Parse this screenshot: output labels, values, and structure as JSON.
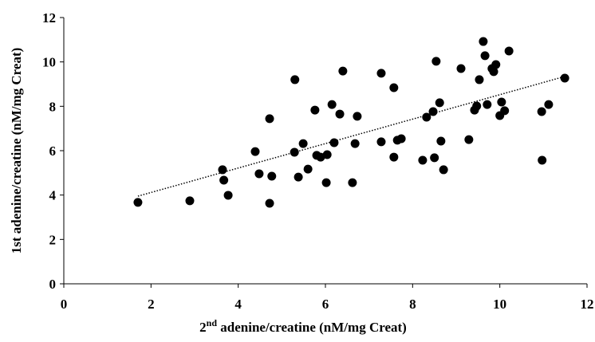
{
  "chart_data": {
    "type": "scatter",
    "xlabel_parts": [
      "2",
      "nd",
      " adenine/creatine  (nM/mg Creat)"
    ],
    "ylabel": "1st adenine/creatine  (nM/mg Creat)",
    "xlim": [
      0,
      12
    ],
    "xticks": [
      0,
      2,
      4,
      6,
      8,
      10,
      12
    ],
    "ylim": [
      0,
      12
    ],
    "yticks": [
      0,
      2,
      4,
      6,
      8,
      10,
      12
    ],
    "color": "#000000",
    "x": [
      1.7,
      2.89,
      3.64,
      3.67,
      3.77,
      4.39,
      4.48,
      4.72,
      4.72,
      4.77,
      5.3,
      5.29,
      5.38,
      5.49,
      5.6,
      5.76,
      5.8,
      5.89,
      6.02,
      6.04,
      6.15,
      6.2,
      6.33,
      6.4,
      6.62,
      6.68,
      6.73,
      7.28,
      7.28,
      7.57,
      7.57,
      7.65,
      7.74,
      8.23,
      8.32,
      8.47,
      8.5,
      8.54,
      8.62,
      8.65,
      8.71,
      9.11,
      9.29,
      9.42,
      9.47,
      9.53,
      9.62,
      9.66,
      9.71,
      9.82,
      9.86,
      9.91,
      10.0,
      10.04,
      10.11,
      10.21,
      10.96,
      10.97,
      11.12,
      11.49
    ],
    "y": [
      3.67,
      3.74,
      5.14,
      4.67,
      3.99,
      5.96,
      4.96,
      3.63,
      7.44,
      4.85,
      9.2,
      5.93,
      4.81,
      6.32,
      5.17,
      7.83,
      5.79,
      5.71,
      4.56,
      5.82,
      8.08,
      6.36,
      7.65,
      9.59,
      4.56,
      6.32,
      7.55,
      9.49,
      6.4,
      8.84,
      5.71,
      6.47,
      6.54,
      5.57,
      7.51,
      7.76,
      5.68,
      10.03,
      8.16,
      6.43,
      5.14,
      9.7,
      6.5,
      7.83,
      8.01,
      9.2,
      10.92,
      10.28,
      8.08,
      9.7,
      9.56,
      9.88,
      7.58,
      8.19,
      7.8,
      10.49,
      7.76,
      5.57,
      8.08,
      9.27
    ],
    "trendline": {
      "x": [
        1.7,
        11.5
      ],
      "y": [
        3.95,
        9.35
      ]
    }
  }
}
